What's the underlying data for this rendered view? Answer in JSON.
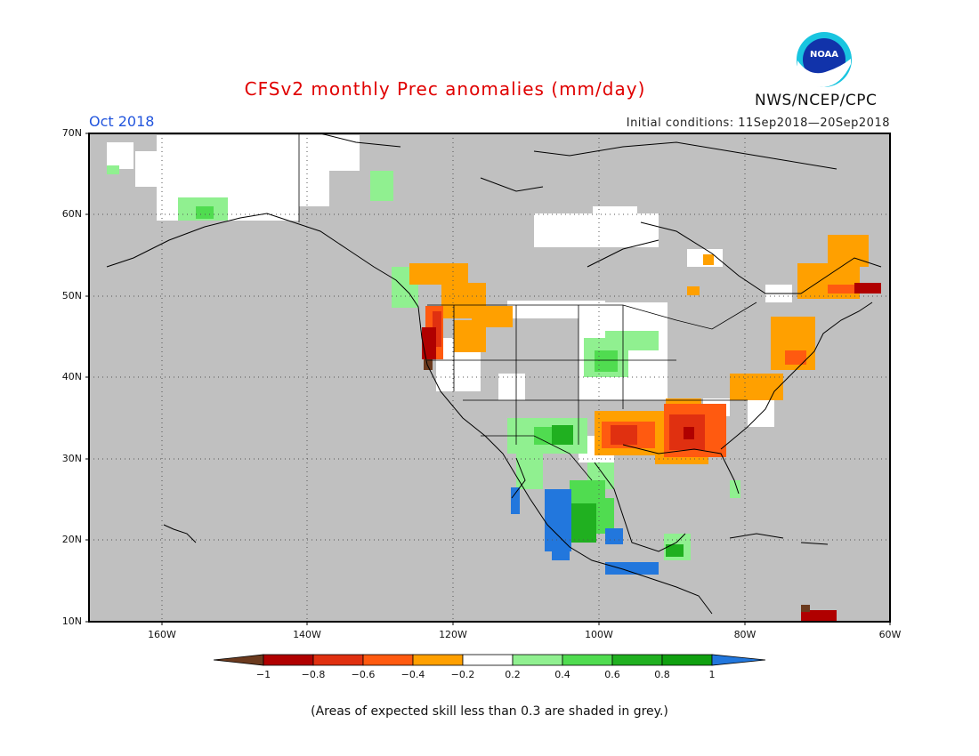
{
  "header": {
    "title": "CFSv2 monthly Prec anomalies (mm/day)",
    "month": "Oct 2018",
    "initial_conditions": "Initial conditions: 11Sep2018—20Sep2018",
    "agency": "NWS/NCEP/CPC",
    "logo_text": "NOAA"
  },
  "map": {
    "lat_labels": [
      "70N",
      "60N",
      "50N",
      "40N",
      "30N",
      "20N",
      "10N"
    ],
    "lon_labels": [
      "160W",
      "140W",
      "120W",
      "100W",
      "80W",
      "60W"
    ],
    "extent": {
      "lon": [
        -170,
        -60
      ],
      "lat": [
        10,
        70
      ]
    },
    "grid_style": "dotted"
  },
  "colorbar": {
    "labels": [
      "−1",
      "−0.8",
      "−0.6",
      "−0.4",
      "−0.2",
      "0.2",
      "0.4",
      "0.6",
      "0.8",
      "1"
    ],
    "colors": [
      "#6b3a1e",
      "#b00000",
      "#e03010",
      "#ff5a10",
      "#ffa000",
      "#ffffff",
      "#90f090",
      "#50dc50",
      "#20b020",
      "#10a010",
      "#2277dd"
    ]
  },
  "footnote": "(Areas of expected skill less than 0.3 are shaded in grey.)",
  "colors": {
    "skill_mask": "#c0c0c0",
    "title": "#e00000",
    "month": "#2255dd"
  }
}
